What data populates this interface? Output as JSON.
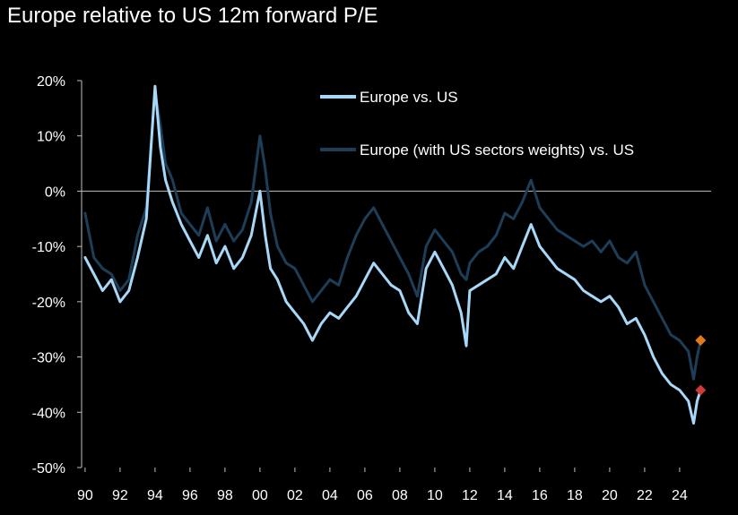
{
  "chart_data": {
    "type": "line",
    "title": "Europe relative to US 12m forward P/E",
    "xlabel": "",
    "ylabel": "",
    "xlim": [
      1989.8,
      2025.8
    ],
    "ylim": [
      -50,
      20
    ],
    "x_ticks": [
      1990,
      1992,
      1994,
      1996,
      1998,
      2000,
      2002,
      2004,
      2006,
      2008,
      2010,
      2012,
      2014,
      2016,
      2018,
      2020,
      2022,
      2024
    ],
    "x_tick_labels": [
      "90",
      "92",
      "94",
      "96",
      "98",
      "00",
      "02",
      "04",
      "06",
      "08",
      "10",
      "12",
      "14",
      "16",
      "18",
      "20",
      "22",
      "24"
    ],
    "y_ticks": [
      20,
      10,
      0,
      -10,
      -20,
      -30,
      -40,
      -50
    ],
    "y_tick_labels": [
      "20%",
      "10%",
      "0%",
      "-10%",
      "-20%",
      "-30%",
      "-40%",
      "-50%"
    ],
    "y_unit": "%",
    "grid": false,
    "legend_position": "top-right",
    "series": [
      {
        "name": "Europe vs. US",
        "color": "#a8d8f8",
        "points": [
          [
            1990.0,
            -12
          ],
          [
            1990.5,
            -15
          ],
          [
            1991.0,
            -18
          ],
          [
            1991.5,
            -16
          ],
          [
            1992.0,
            -20
          ],
          [
            1992.5,
            -18
          ],
          [
            1993.0,
            -12
          ],
          [
            1993.5,
            -5
          ],
          [
            1994.0,
            19
          ],
          [
            1994.3,
            8
          ],
          [
            1994.6,
            2
          ],
          [
            1995.0,
            -2
          ],
          [
            1995.5,
            -6
          ],
          [
            1996.0,
            -9
          ],
          [
            1996.5,
            -12
          ],
          [
            1997.0,
            -8
          ],
          [
            1997.5,
            -13
          ],
          [
            1998.0,
            -10
          ],
          [
            1998.5,
            -14
          ],
          [
            1999.0,
            -12
          ],
          [
            1999.5,
            -8
          ],
          [
            2000.0,
            0
          ],
          [
            2000.3,
            -8
          ],
          [
            2000.6,
            -14
          ],
          [
            2001.0,
            -16
          ],
          [
            2001.5,
            -20
          ],
          [
            2002.0,
            -22
          ],
          [
            2002.5,
            -24
          ],
          [
            2003.0,
            -27
          ],
          [
            2003.5,
            -24
          ],
          [
            2004.0,
            -22
          ],
          [
            2004.5,
            -23
          ],
          [
            2005.0,
            -21
          ],
          [
            2005.5,
            -19
          ],
          [
            2006.0,
            -16
          ],
          [
            2006.5,
            -13
          ],
          [
            2007.0,
            -15
          ],
          [
            2007.5,
            -17
          ],
          [
            2008.0,
            -18
          ],
          [
            2008.5,
            -22
          ],
          [
            2009.0,
            -24
          ],
          [
            2009.5,
            -14
          ],
          [
            2010.0,
            -11
          ],
          [
            2010.5,
            -14
          ],
          [
            2011.0,
            -17
          ],
          [
            2011.5,
            -22
          ],
          [
            2011.8,
            -28
          ],
          [
            2012.0,
            -18
          ],
          [
            2012.5,
            -17
          ],
          [
            2013.0,
            -16
          ],
          [
            2013.5,
            -15
          ],
          [
            2014.0,
            -12
          ],
          [
            2014.5,
            -14
          ],
          [
            2015.0,
            -10
          ],
          [
            2015.5,
            -6
          ],
          [
            2016.0,
            -10
          ],
          [
            2016.5,
            -12
          ],
          [
            2017.0,
            -14
          ],
          [
            2017.5,
            -15
          ],
          [
            2018.0,
            -16
          ],
          [
            2018.5,
            -18
          ],
          [
            2019.0,
            -19
          ],
          [
            2019.5,
            -20
          ],
          [
            2020.0,
            -19
          ],
          [
            2020.5,
            -21
          ],
          [
            2021.0,
            -24
          ],
          [
            2021.5,
            -23
          ],
          [
            2022.0,
            -26
          ],
          [
            2022.5,
            -30
          ],
          [
            2023.0,
            -33
          ],
          [
            2023.5,
            -35
          ],
          [
            2024.0,
            -36
          ],
          [
            2024.5,
            -38
          ],
          [
            2024.8,
            -42
          ],
          [
            2025.0,
            -38
          ],
          [
            2025.2,
            -36
          ]
        ]
      },
      {
        "name": "Europe (with US sectors weights) vs. US",
        "color": "#1e3d57",
        "points": [
          [
            1990.0,
            -4
          ],
          [
            1990.5,
            -12
          ],
          [
            1991.0,
            -14
          ],
          [
            1991.5,
            -15
          ],
          [
            1992.0,
            -18
          ],
          [
            1992.5,
            -16
          ],
          [
            1993.0,
            -8
          ],
          [
            1993.5,
            -3
          ],
          [
            1994.0,
            18
          ],
          [
            1994.3,
            12
          ],
          [
            1994.6,
            5
          ],
          [
            1995.0,
            2
          ],
          [
            1995.5,
            -4
          ],
          [
            1996.0,
            -6
          ],
          [
            1996.5,
            -8
          ],
          [
            1997.0,
            -3
          ],
          [
            1997.5,
            -9
          ],
          [
            1998.0,
            -6
          ],
          [
            1998.5,
            -9
          ],
          [
            1999.0,
            -7
          ],
          [
            1999.5,
            -2
          ],
          [
            2000.0,
            10
          ],
          [
            2000.3,
            4
          ],
          [
            2000.6,
            -4
          ],
          [
            2001.0,
            -10
          ],
          [
            2001.5,
            -13
          ],
          [
            2002.0,
            -14
          ],
          [
            2002.5,
            -17
          ],
          [
            2003.0,
            -20
          ],
          [
            2003.5,
            -18
          ],
          [
            2004.0,
            -16
          ],
          [
            2004.5,
            -17
          ],
          [
            2005.0,
            -12
          ],
          [
            2005.5,
            -8
          ],
          [
            2006.0,
            -5
          ],
          [
            2006.5,
            -3
          ],
          [
            2007.0,
            -6
          ],
          [
            2007.5,
            -9
          ],
          [
            2008.0,
            -12
          ],
          [
            2008.5,
            -15
          ],
          [
            2009.0,
            -19
          ],
          [
            2009.5,
            -10
          ],
          [
            2010.0,
            -7
          ],
          [
            2010.5,
            -9
          ],
          [
            2011.0,
            -11
          ],
          [
            2011.5,
            -15
          ],
          [
            2011.8,
            -16
          ],
          [
            2012.0,
            -13
          ],
          [
            2012.5,
            -11
          ],
          [
            2013.0,
            -10
          ],
          [
            2013.5,
            -8
          ],
          [
            2014.0,
            -4
          ],
          [
            2014.5,
            -5
          ],
          [
            2015.0,
            -2
          ],
          [
            2015.5,
            2
          ],
          [
            2016.0,
            -3
          ],
          [
            2016.5,
            -5
          ],
          [
            2017.0,
            -7
          ],
          [
            2017.5,
            -8
          ],
          [
            2018.0,
            -9
          ],
          [
            2018.5,
            -10
          ],
          [
            2019.0,
            -9
          ],
          [
            2019.5,
            -11
          ],
          [
            2020.0,
            -9
          ],
          [
            2020.5,
            -12
          ],
          [
            2021.0,
            -13
          ],
          [
            2021.5,
            -11
          ],
          [
            2022.0,
            -17
          ],
          [
            2022.5,
            -20
          ],
          [
            2023.0,
            -23
          ],
          [
            2023.5,
            -26
          ],
          [
            2024.0,
            -27
          ],
          [
            2024.5,
            -29
          ],
          [
            2024.8,
            -34
          ],
          [
            2025.0,
            -30
          ],
          [
            2025.2,
            -27
          ]
        ]
      }
    ],
    "markers": [
      {
        "series": "Europe vs. US",
        "x": 2025.2,
        "y": -36,
        "color": "#cc3a3a",
        "shape": "diamond"
      },
      {
        "series": "Europe (with US sectors weights) vs. US",
        "x": 2025.2,
        "y": -27,
        "color": "#e07b1a",
        "shape": "diamond"
      }
    ]
  }
}
